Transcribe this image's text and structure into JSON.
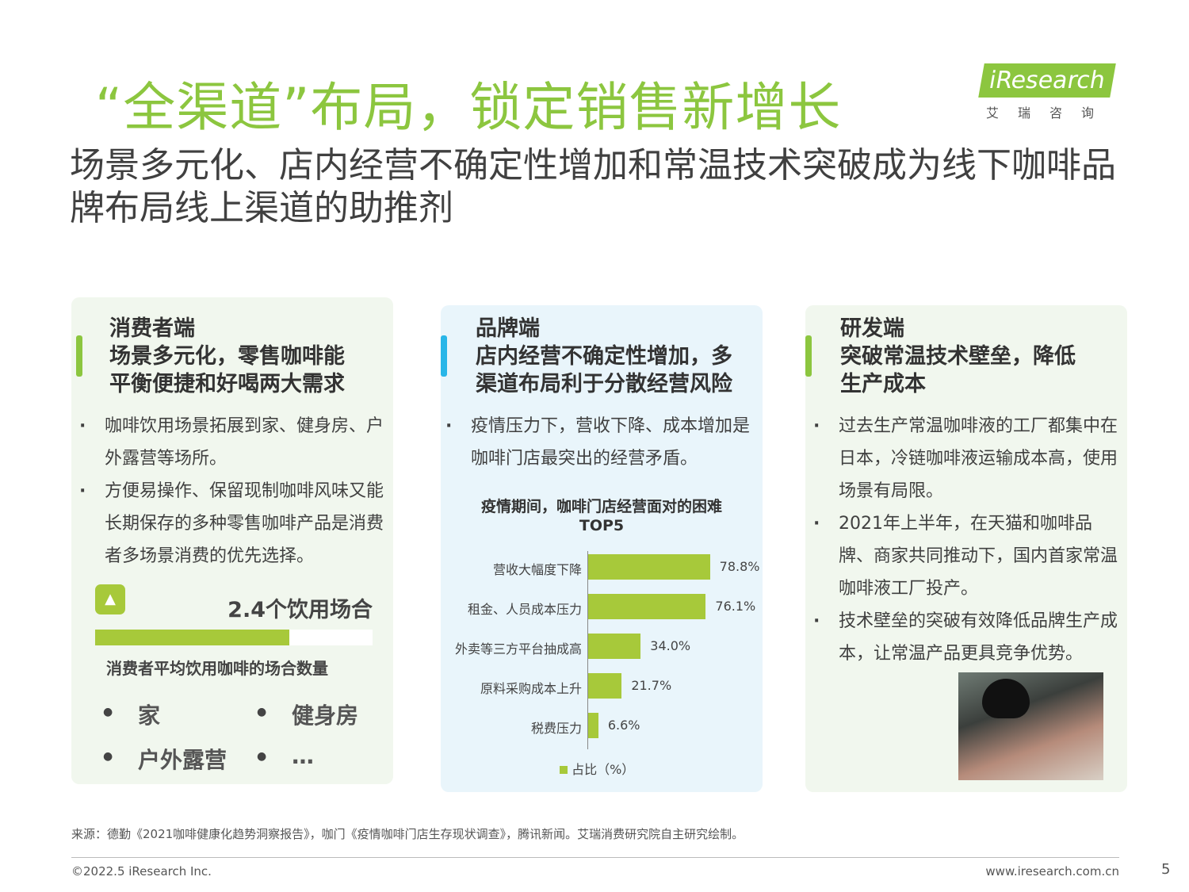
{
  "title": "“全渠道”布局，锁定销售新增长",
  "subtitle": "场景多元化、店内经营不确定性增加和常温技术突破成为线下咖啡品牌布局线上渠道的助推剂",
  "logo": {
    "word": "iResearch",
    "cn": "艾瑞咨询"
  },
  "colors": {
    "green": "#8cc63f",
    "lime": "#a7c93a",
    "blue": "#29b6e8",
    "card_green": "#f1f7ee",
    "card_blue": "#e9f5fb"
  },
  "cards": [
    {
      "head": [
        "消费者端",
        "场景多元化，零售咖啡能",
        "平衡便捷和好喝两大需求"
      ],
      "bullets": [
        "咖啡饮用场景拓展到家、健身房、户外露营等场所。",
        "方便易操作、保留现制咖啡风味又能长期保存的多种零售咖啡产品是消费者多场景消费的优先选择。"
      ],
      "stat": {
        "icon": "image-icon",
        "value": "2.4个饮用场合",
        "label": "消费者平均饮用咖啡的场合数量",
        "progress": 0.7
      },
      "places": [
        "家",
        "健身房",
        "户外露营",
        "…"
      ]
    },
    {
      "head": [
        "品牌端",
        "店内经营不确定性增加，多",
        "渠道布局利于分散经营风险"
      ],
      "bullets": [
        "疫情压力下，营收下降、成本增加是咖啡门店最突出的经营矛盾。"
      ]
    },
    {
      "head": [
        "研发端",
        "突破常温技术壁垒，降低",
        "生产成本"
      ],
      "bullets": [
        "过去生产常温咖啡液的工厂都集中在日本，冷链咖啡液运输成本高，使用场景有局限。",
        "2021年上半年，在天猫和咖啡品牌、商家共同推动下，国内首家常温咖啡液工厂投产。",
        "技术壁垒的突破有效降低品牌生产成本，让常温产品更具竞争优势。"
      ],
      "photo": "photo"
    }
  ],
  "chart_data": {
    "type": "bar",
    "orientation": "horizontal",
    "title": "疫情期间，咖啡门店经营面对的困难TOP5",
    "title_lines": [
      "疫情期间，咖啡门店经营面对的困难",
      "TOP5"
    ],
    "categories": [
      "营收大幅度下降",
      "租金、人员成本压力",
      "外卖等三方平台抽成高",
      "原料采购成本上升",
      "税费压力"
    ],
    "values": [
      78.8,
      76.1,
      34.0,
      21.7,
      6.6
    ],
    "labels": [
      "78.8%",
      "76.1%",
      "34.0%",
      "21.7%",
      "6.6%"
    ],
    "legend": "占比（%）",
    "legend_position": "bottom",
    "xlim": [
      0,
      100
    ],
    "grid": false,
    "color": "#a7c93a"
  },
  "footer": {
    "source": "来源：德勤《2021咖啡健康化趋势洞察报告》，咖门《疫情咖啡门店生存现状调查》，腾讯新闻。艾瑞消费研究院自主研究绘制。",
    "copyright": "©2022.5 iResearch Inc.",
    "url": "www.iresearch.com.cn",
    "page": "5"
  }
}
